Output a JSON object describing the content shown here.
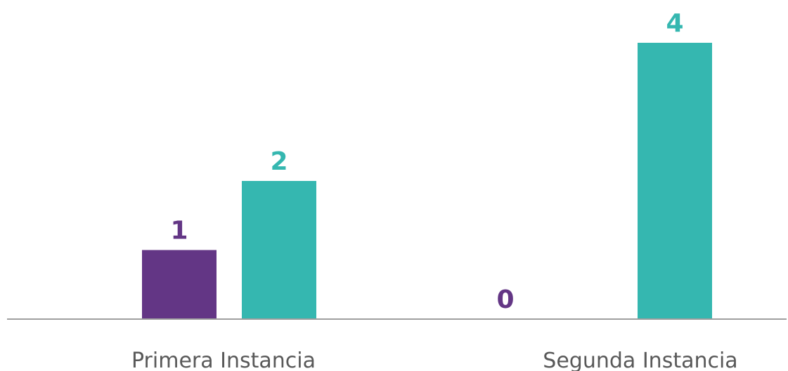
{
  "chart_data": {
    "type": "bar",
    "categories": [
      "Primera Instancia",
      "Segunda Instancia"
    ],
    "series": [
      {
        "values": [
          1,
          0
        ],
        "color": "#633685"
      },
      {
        "values": [
          2,
          4
        ],
        "color": "#35B7B0"
      }
    ],
    "ylim": [
      0,
      4
    ],
    "grid": false,
    "legend": "none",
    "axis_color": "#9E9E9E",
    "label_color": "#595959"
  }
}
